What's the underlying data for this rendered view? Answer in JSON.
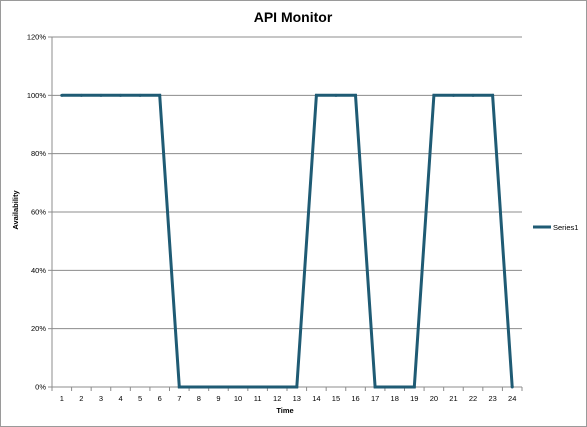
{
  "chart_data": {
    "type": "line",
    "title": "API Monitor",
    "xlabel": "Time",
    "ylabel": "Availability",
    "categories": [
      "1",
      "2",
      "3",
      "4",
      "5",
      "6",
      "7",
      "8",
      "9",
      "10",
      "11",
      "12",
      "13",
      "14",
      "15",
      "16",
      "17",
      "18",
      "19",
      "20",
      "21",
      "22",
      "23",
      "24"
    ],
    "series": [
      {
        "name": "Series1",
        "color": "#1f5b74",
        "values": [
          1,
          1,
          1,
          1,
          1,
          1,
          0,
          0,
          0,
          0,
          0,
          0,
          0,
          1,
          1,
          1,
          0,
          0,
          0,
          1,
          1,
          1,
          1,
          0
        ]
      }
    ],
    "ylim": [
      0,
      1.2
    ],
    "yticks": [
      0,
      0.2,
      0.4,
      0.6,
      0.8,
      1.0,
      1.2
    ],
    "ytick_labels": [
      "0%",
      "20%",
      "40%",
      "60%",
      "80%",
      "100%",
      "120%"
    ],
    "grid": true,
    "legend_position": "right"
  }
}
